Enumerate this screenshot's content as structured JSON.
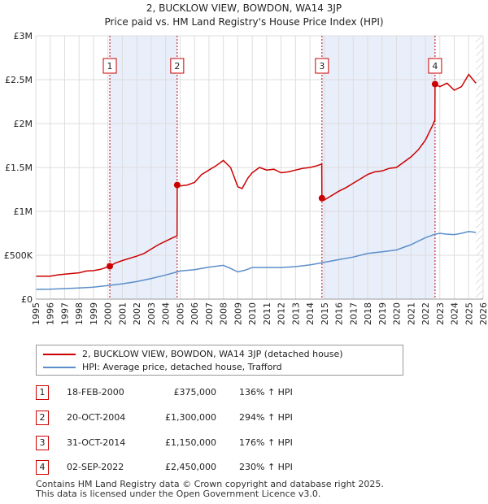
{
  "chart_data": {
    "type": "line",
    "title": "2, BUCKLOW VIEW, BOWDON, WA14 3JP",
    "subtitle": "Price paid vs. HM Land Registry's House Price Index (HPI)",
    "xlabel": "",
    "ylabel": "",
    "xlim": [
      1995,
      2026
    ],
    "ylim": [
      0,
      3000000
    ],
    "grid": true,
    "x_ticks": [
      "1995",
      "1996",
      "1997",
      "1998",
      "1999",
      "2000",
      "2001",
      "2002",
      "2003",
      "2004",
      "2005",
      "2006",
      "2007",
      "2008",
      "2009",
      "2010",
      "2011",
      "2012",
      "2013",
      "2014",
      "2015",
      "2016",
      "2017",
      "2018",
      "2019",
      "2020",
      "2021",
      "2022",
      "2023",
      "2024",
      "2025",
      "2026"
    ],
    "y_ticks": [
      {
        "value": 0,
        "label": "£0"
      },
      {
        "value": 500000,
        "label": "£500K"
      },
      {
        "value": 1000000,
        "label": "£1M"
      },
      {
        "value": 1500000,
        "label": "£1.5M"
      },
      {
        "value": 2000000,
        "label": "£2M"
      },
      {
        "value": 2500000,
        "label": "£2.5M"
      },
      {
        "value": 3000000,
        "label": "£3M"
      }
    ],
    "series": [
      {
        "name": "2, BUCKLOW VIEW, BOWDON, WA14 3JP (detached house)",
        "color": "#cc0000",
        "points": [
          [
            1995.0,
            262000
          ],
          [
            1996.0,
            262000
          ],
          [
            1996.5,
            275000
          ],
          [
            1997.0,
            285000
          ],
          [
            1998.0,
            300000
          ],
          [
            1998.5,
            320000
          ],
          [
            1999.0,
            325000
          ],
          [
            1999.5,
            340000
          ],
          [
            2000.13,
            375000
          ],
          [
            2000.5,
            410000
          ],
          [
            2001.0,
            440000
          ],
          [
            2002.0,
            490000
          ],
          [
            2002.5,
            520000
          ],
          [
            2003.0,
            570000
          ],
          [
            2003.5,
            620000
          ],
          [
            2004.0,
            660000
          ],
          [
            2004.5,
            700000
          ],
          [
            2004.79,
            720000
          ],
          [
            2004.8,
            1300000
          ],
          [
            2005.0,
            1290000
          ],
          [
            2005.5,
            1300000
          ],
          [
            2006.0,
            1330000
          ],
          [
            2006.5,
            1420000
          ],
          [
            2007.0,
            1470000
          ],
          [
            2007.5,
            1520000
          ],
          [
            2008.0,
            1580000
          ],
          [
            2008.5,
            1500000
          ],
          [
            2009.0,
            1280000
          ],
          [
            2009.3,
            1260000
          ],
          [
            2009.7,
            1380000
          ],
          [
            2010.0,
            1440000
          ],
          [
            2010.5,
            1500000
          ],
          [
            2011.0,
            1470000
          ],
          [
            2011.5,
            1480000
          ],
          [
            2012.0,
            1440000
          ],
          [
            2012.5,
            1450000
          ],
          [
            2013.0,
            1470000
          ],
          [
            2013.5,
            1490000
          ],
          [
            2014.0,
            1500000
          ],
          [
            2014.5,
            1520000
          ],
          [
            2014.82,
            1540000
          ],
          [
            2014.83,
            1150000
          ],
          [
            2015.0,
            1130000
          ],
          [
            2015.5,
            1180000
          ],
          [
            2016.0,
            1230000
          ],
          [
            2016.5,
            1270000
          ],
          [
            2017.0,
            1320000
          ],
          [
            2017.5,
            1370000
          ],
          [
            2018.0,
            1420000
          ],
          [
            2018.5,
            1450000
          ],
          [
            2019.0,
            1460000
          ],
          [
            2019.5,
            1490000
          ],
          [
            2020.0,
            1500000
          ],
          [
            2020.5,
            1560000
          ],
          [
            2021.0,
            1620000
          ],
          [
            2021.5,
            1700000
          ],
          [
            2022.0,
            1810000
          ],
          [
            2022.5,
            1980000
          ],
          [
            2022.66,
            2040000
          ],
          [
            2022.67,
            2450000
          ],
          [
            2023.0,
            2420000
          ],
          [
            2023.5,
            2460000
          ],
          [
            2024.0,
            2380000
          ],
          [
            2024.5,
            2420000
          ],
          [
            2025.0,
            2560000
          ],
          [
            2025.5,
            2460000
          ]
        ]
      },
      {
        "name": "HPI: Average price, detached house, Trafford",
        "color": "#5b8ec9",
        "points": [
          [
            1995.0,
            111000
          ],
          [
            1996.0,
            113000
          ],
          [
            1997.0,
            120000
          ],
          [
            1998.0,
            128000
          ],
          [
            1999.0,
            137000
          ],
          [
            2000.0,
            155000
          ],
          [
            2001.0,
            175000
          ],
          [
            2002.0,
            200000
          ],
          [
            2003.0,
            235000
          ],
          [
            2004.0,
            275000
          ],
          [
            2004.79,
            310000
          ],
          [
            2005.0,
            320000
          ],
          [
            2006.0,
            335000
          ],
          [
            2007.0,
            365000
          ],
          [
            2008.0,
            385000
          ],
          [
            2008.5,
            350000
          ],
          [
            2009.0,
            310000
          ],
          [
            2009.5,
            330000
          ],
          [
            2010.0,
            360000
          ],
          [
            2011.0,
            360000
          ],
          [
            2012.0,
            360000
          ],
          [
            2013.0,
            370000
          ],
          [
            2014.0,
            390000
          ],
          [
            2014.83,
            415000
          ],
          [
            2015.0,
            420000
          ],
          [
            2016.0,
            450000
          ],
          [
            2017.0,
            480000
          ],
          [
            2018.0,
            520000
          ],
          [
            2019.0,
            540000
          ],
          [
            2020.0,
            560000
          ],
          [
            2021.0,
            620000
          ],
          [
            2022.0,
            700000
          ],
          [
            2022.67,
            740000
          ],
          [
            2023.0,
            750000
          ],
          [
            2023.5,
            740000
          ],
          [
            2024.0,
            735000
          ],
          [
            2024.5,
            750000
          ],
          [
            2025.0,
            770000
          ],
          [
            2025.5,
            760000
          ]
        ]
      }
    ],
    "sales": [
      {
        "num": "1",
        "x": 2000.13,
        "y": 375000,
        "date": "18-FEB-2000",
        "price": "£375,000",
        "hpi": "136% ↑ HPI"
      },
      {
        "num": "2",
        "x": 2004.8,
        "y": 1300000,
        "date": "20-OCT-2004",
        "price": "£1,300,000",
        "hpi": "294% ↑ HPI"
      },
      {
        "num": "3",
        "x": 2014.83,
        "y": 1150000,
        "date": "31-OCT-2014",
        "price": "£1,150,000",
        "hpi": "176% ↑ HPI"
      },
      {
        "num": "4",
        "x": 2022.67,
        "y": 2450000,
        "date": "02-SEP-2022",
        "price": "£2,450,000",
        "hpi": "230% ↑ HPI"
      }
    ],
    "shaded_ranges": [
      [
        2000.13,
        2004.8
      ],
      [
        2014.83,
        2022.67
      ]
    ],
    "future_start": 2025.5,
    "colors": {
      "shade": "#e8eefa",
      "grid": "#dddddd",
      "vline": "#cc0000",
      "hatch": "#bbbbbb"
    }
  },
  "legend": {
    "property_label": "2, BUCKLOW VIEW, BOWDON, WA14 3JP (detached house)",
    "hpi_label": "HPI: Average price, detached house, Trafford"
  },
  "footer": {
    "line1": "Contains HM Land Registry data © Crown copyright and database right 2025.",
    "line2": "This data is licensed under the Open Government Licence v3.0."
  }
}
